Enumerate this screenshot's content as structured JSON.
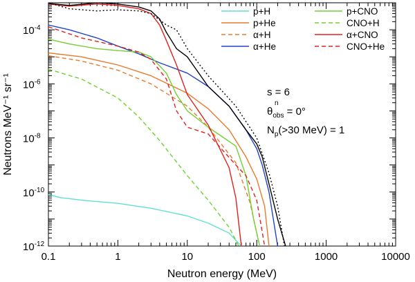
{
  "chart_data": {
    "type": "line",
    "x_scale": "log",
    "y_scale": "log",
    "xlabel": "Neutron energy (MeV)",
    "ylabel": "Neutrons MeV⁻¹ sr⁻¹",
    "xlim": [
      0.1,
      10000
    ],
    "ylim": [
      1e-12,
      0.001
    ],
    "x_ticks": [
      {
        "value": 0.1,
        "label": "0.1"
      },
      {
        "value": 1,
        "label": "1"
      },
      {
        "value": 10,
        "label": "10"
      },
      {
        "value": 100,
        "label": "100"
      },
      {
        "value": 1000,
        "label": "1000"
      },
      {
        "value": 10000,
        "label": "10000"
      }
    ],
    "y_ticks": [
      {
        "value": 1e-12,
        "base": "10",
        "exp": "-12"
      },
      {
        "value": 1e-10,
        "base": "10",
        "exp": "-10"
      },
      {
        "value": 1e-08,
        "base": "10",
        "exp": "-8"
      },
      {
        "value": 1e-06,
        "base": "10",
        "exp": "-6"
      },
      {
        "value": 0.0001,
        "base": "10",
        "exp": "-4"
      }
    ],
    "annotations": {
      "s": "s = 6",
      "theta_base": "θ",
      "theta_sup": "n",
      "theta_sub": "obs",
      "theta_value": " = 0°",
      "np_base": "N",
      "np_sub": "p",
      "np_value": "(>30 MeV) = 1"
    },
    "series": [
      {
        "name": "p+H",
        "legend": true,
        "color": "#5fe0d0",
        "dash": "solid",
        "points": [
          [
            0.1,
            8e-11
          ],
          [
            0.15,
            6.2e-11
          ],
          [
            0.3,
            5e-11
          ],
          [
            1,
            3.8e-11
          ],
          [
            3,
            2.5e-11
          ],
          [
            10,
            1.3e-11
          ],
          [
            20,
            7e-12
          ],
          [
            40,
            3e-12
          ],
          [
            60,
            1e-12
          ]
        ]
      },
      {
        "name": "p+He",
        "legend": true,
        "color": "#e87a2c",
        "dash": "solid",
        "points": [
          [
            0.1,
            1.4e-05
          ],
          [
            0.3,
            1e-05
          ],
          [
            1,
            5e-06
          ],
          [
            3,
            2e-06
          ],
          [
            10,
            4.5e-07
          ],
          [
            20,
            1.2e-07
          ],
          [
            40,
            2e-08
          ],
          [
            70,
            2e-09
          ],
          [
            100,
            3e-10
          ],
          [
            130,
            3e-11
          ],
          [
            150,
            1e-12
          ]
        ]
      },
      {
        "name": "α+H",
        "legend": true,
        "color": "#e87a2c",
        "dash": "dashed",
        "points": [
          [
            0.1,
            1.1e-05
          ],
          [
            0.3,
            7e-06
          ],
          [
            1,
            3.2e-06
          ],
          [
            3,
            1e-06
          ],
          [
            10,
            1.5e-07
          ],
          [
            20,
            2.5e-08
          ],
          [
            50,
            1.2e-09
          ],
          [
            80,
            4e-11
          ],
          [
            110,
            1e-12
          ]
        ]
      },
      {
        "name": "α+He",
        "legend": true,
        "color": "#2040c8",
        "dash": "solid",
        "points": [
          [
            0.1,
            0.00015
          ],
          [
            0.2,
            0.0001
          ],
          [
            0.5,
            5e-05
          ],
          [
            1,
            2.5e-05
          ],
          [
            2,
            1.3e-05
          ],
          [
            4,
            6e-06
          ],
          [
            10,
            2.5e-06
          ],
          [
            20,
            8e-07
          ],
          [
            40,
            1.5e-07
          ],
          [
            70,
            2e-08
          ],
          [
            100,
            4e-09
          ],
          [
            120,
            1e-09
          ],
          [
            150,
            1e-10
          ],
          [
            200,
            1e-12
          ]
        ]
      },
      {
        "name": "p+CNO",
        "legend": true,
        "color": "#70d030",
        "dash": "solid",
        "points": [
          [
            0.1,
            4.5e-05
          ],
          [
            0.2,
            3e-05
          ],
          [
            0.5,
            2e-05
          ],
          [
            1,
            1.7e-05
          ],
          [
            2,
            1.5e-05
          ],
          [
            3,
            1e-05
          ],
          [
            5,
            2.5e-06
          ],
          [
            7,
            4e-07
          ],
          [
            10,
            1e-07
          ],
          [
            20,
            2.5e-08
          ],
          [
            50,
            5e-09
          ],
          [
            70,
            4e-10
          ],
          [
            90,
            1e-11
          ],
          [
            110,
            1e-12
          ]
        ]
      },
      {
        "name": "CNO+H",
        "legend": true,
        "color": "#70d030",
        "dash": "dashed",
        "points": [
          [
            0.1,
            3.5e-06
          ],
          [
            0.3,
            1.5e-06
          ],
          [
            1,
            3e-07
          ],
          [
            2,
            6e-08
          ],
          [
            4,
            8e-09
          ],
          [
            10,
            4e-10
          ],
          [
            20,
            5e-11
          ],
          [
            40,
            5e-12
          ],
          [
            55,
            1e-12
          ]
        ]
      },
      {
        "name": "α+CNO",
        "legend": true,
        "color": "#e0201c",
        "dash": "solid",
        "points": [
          [
            0.1,
            0.0009
          ],
          [
            0.2,
            0.00075
          ],
          [
            0.5,
            0.0009
          ],
          [
            1,
            0.0008
          ],
          [
            2,
            0.0006
          ],
          [
            3,
            0.0004
          ],
          [
            4,
            0.00015
          ],
          [
            5,
            4e-05
          ],
          [
            7,
            5e-06
          ],
          [
            10,
            4e-07
          ],
          [
            20,
            3e-08
          ],
          [
            40,
            8e-10
          ],
          [
            50,
            6e-11
          ],
          [
            60,
            1e-12
          ]
        ]
      },
      {
        "name": "CNO+He",
        "legend": true,
        "color": "#e0201c",
        "dash": "dashed",
        "points": [
          [
            0.1,
            0.00013
          ],
          [
            0.3,
            5e-05
          ],
          [
            1,
            2.5e-05
          ],
          [
            2,
            1.5e-05
          ],
          [
            3,
            8e-06
          ],
          [
            5,
            1.5e-06
          ],
          [
            7,
            1e-07
          ],
          [
            10,
            2.5e-08
          ],
          [
            20,
            1.4e-08
          ],
          [
            50,
            1e-09
          ],
          [
            70,
            4e-10
          ],
          [
            100,
            5e-11
          ],
          [
            130,
            1e-12
          ]
        ]
      },
      {
        "name": "total",
        "legend": false,
        "color": "#000000",
        "dash": "solid",
        "points": [
          [
            0.1,
            0.00095
          ],
          [
            0.2,
            0.0008
          ],
          [
            0.5,
            0.001
          ],
          [
            1,
            0.0009
          ],
          [
            2,
            0.0007
          ],
          [
            3,
            0.0005
          ],
          [
            4,
            0.00025
          ],
          [
            5,
            8e-05
          ],
          [
            7,
            2e-05
          ],
          [
            10,
            1e-05
          ],
          [
            20,
            8e-07
          ],
          [
            40,
            1.5e-07
          ],
          [
            70,
            2e-08
          ],
          [
            100,
            6e-09
          ],
          [
            120,
            2e-09
          ],
          [
            150,
            2e-10
          ],
          [
            200,
            1e-11
          ],
          [
            260,
            1e-12
          ]
        ]
      },
      {
        "name": "total-dotted",
        "legend": false,
        "color": "#000000",
        "dash": "dotted",
        "points": [
          [
            0.1,
            0.001
          ],
          [
            0.2,
            0.0006
          ],
          [
            0.5,
            0.0005
          ],
          [
            1,
            0.00055
          ],
          [
            2,
            0.0005
          ],
          [
            3,
            0.0004
          ],
          [
            5,
            0.00015
          ],
          [
            7,
            0.0001
          ],
          [
            10,
            2e-05
          ],
          [
            20,
            2e-06
          ],
          [
            50,
            1.5e-07
          ],
          [
            100,
            1e-08
          ],
          [
            150,
            5e-10
          ],
          [
            200,
            3e-11
          ],
          [
            250,
            1e-12
          ]
        ]
      }
    ]
  }
}
